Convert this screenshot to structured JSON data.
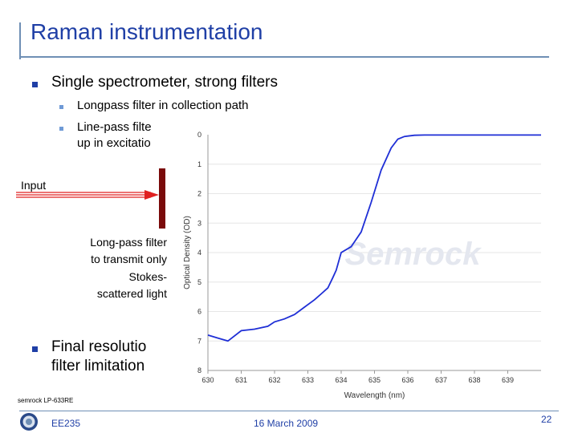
{
  "slide": {
    "title": "Raman instrumentation",
    "bullets": [
      {
        "text": "Single spectrometer, strong filters"
      },
      {
        "text": "Final resolutio"
      }
    ],
    "sub_bullets": [
      {
        "text": "Longpass filter in collection path"
      },
      {
        "text": "Line-pass filte"
      },
      {
        "text": "up in excitatio"
      }
    ],
    "bullet2_line2": "filter limitation",
    "diagram": {
      "input_label": "Input",
      "filter_caption": [
        "Long-pass filter",
        "to transmit only",
        "Stokes-",
        "scattered light"
      ]
    },
    "source_note": "semrock LP-633RE",
    "footer": {
      "course": "EE235",
      "date": "16 March 2009",
      "page": "22"
    },
    "colors": {
      "title": "#1f3fa6",
      "curve": "#1f2fd6",
      "filter": "#7a0a0a",
      "beam": "#e02020"
    }
  },
  "chart_data": {
    "type": "line",
    "xlabel": "Wavelength (nm)",
    "ylabel": "Optical Density (OD)",
    "xlim": [
      630,
      640
    ],
    "ylim": [
      0,
      8
    ],
    "y_inverted": true,
    "x_ticks": [
      "630",
      "631",
      "632",
      "633",
      "634",
      "635",
      "636",
      "637",
      "638",
      "639"
    ],
    "y_ticks": [
      "0",
      "1",
      "2",
      "3",
      "4",
      "5",
      "6",
      "7",
      "8"
    ],
    "watermark": "Semrock",
    "series": [
      {
        "x": [
          630.0,
          630.3,
          630.6,
          631.0,
          631.4,
          631.8,
          632.0,
          632.3,
          632.6,
          632.9,
          633.2,
          633.4,
          633.6,
          633.75,
          633.85,
          634.0,
          634.3,
          634.6,
          634.9,
          635.2,
          635.5,
          635.7,
          635.9,
          636.2,
          636.5,
          637.0,
          638.0,
          639.0,
          640.0
        ],
        "y": [
          6.8,
          6.9,
          7.0,
          6.65,
          6.6,
          6.5,
          6.35,
          6.25,
          6.1,
          5.85,
          5.6,
          5.4,
          5.2,
          4.85,
          4.6,
          4.0,
          3.8,
          3.3,
          2.3,
          1.2,
          0.45,
          0.15,
          0.06,
          0.02,
          0.01,
          0.01,
          0.01,
          0.01,
          0.01
        ]
      }
    ]
  }
}
